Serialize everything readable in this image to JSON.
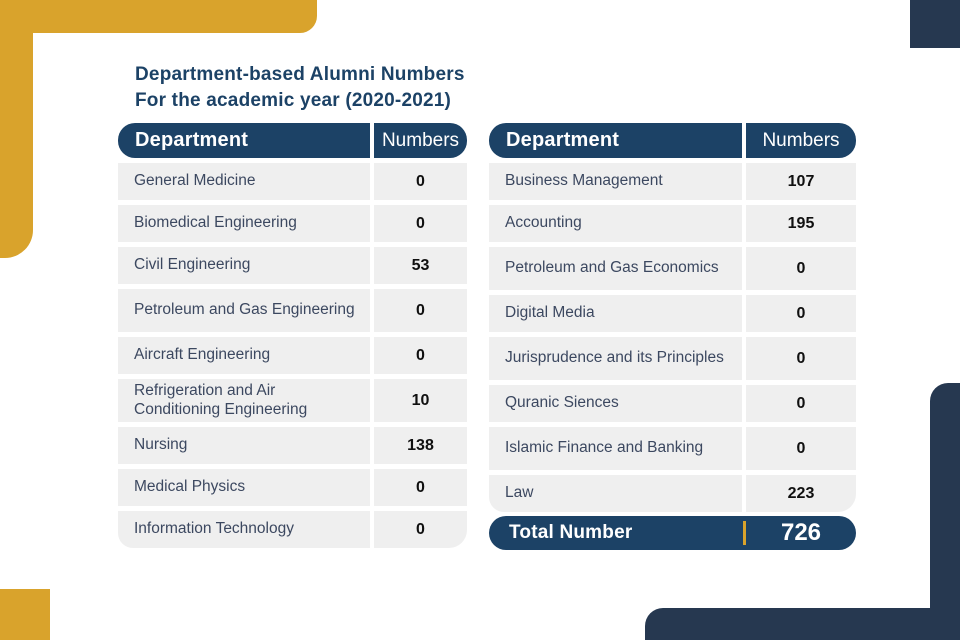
{
  "title": {
    "line1": "Department-based Alumni Numbers",
    "line2": "For the academic year (2020-2021)"
  },
  "left_table": {
    "header": {
      "department": "Department",
      "numbers": "Numbers"
    },
    "rows": [
      {
        "department": "General Medicine",
        "number": "0"
      },
      {
        "department": "Biomedical Engineering",
        "number": "0"
      },
      {
        "department": "Civil Engineering",
        "number": "53"
      },
      {
        "department": "Petroleum and Gas Engineering",
        "number": "0"
      },
      {
        "department": "Aircraft Engineering",
        "number": "0"
      },
      {
        "department": "Refrigeration and Air Conditioning Engineering",
        "number": "10"
      },
      {
        "department": "Nursing",
        "number": "138"
      },
      {
        "department": "Medical Physics",
        "number": "0"
      },
      {
        "department": "Information Technology",
        "number": "0"
      }
    ]
  },
  "right_table": {
    "header": {
      "department": "Department",
      "numbers": "Numbers"
    },
    "rows": [
      {
        "department": "Business Management",
        "number": "107"
      },
      {
        "department": "Accounting",
        "number": "195"
      },
      {
        "department": "Petroleum and Gas Economics",
        "number": "0"
      },
      {
        "department": "Digital Media",
        "number": "0"
      },
      {
        "department": "Jurisprudence and its Principles",
        "number": "0"
      },
      {
        "department": "Quranic Siences",
        "number": "0"
      },
      {
        "department": "Islamic Finance and Banking",
        "number": "0"
      },
      {
        "department": "Law",
        "number": "223"
      }
    ],
    "total": {
      "label": "Total Number",
      "value": "726"
    }
  },
  "colors": {
    "gold": "#D9A32C",
    "navy_header": "#1C4266",
    "navy_decor": "#263850",
    "row_bg": "#EFEFEF",
    "text_dark": "#3C4860"
  }
}
